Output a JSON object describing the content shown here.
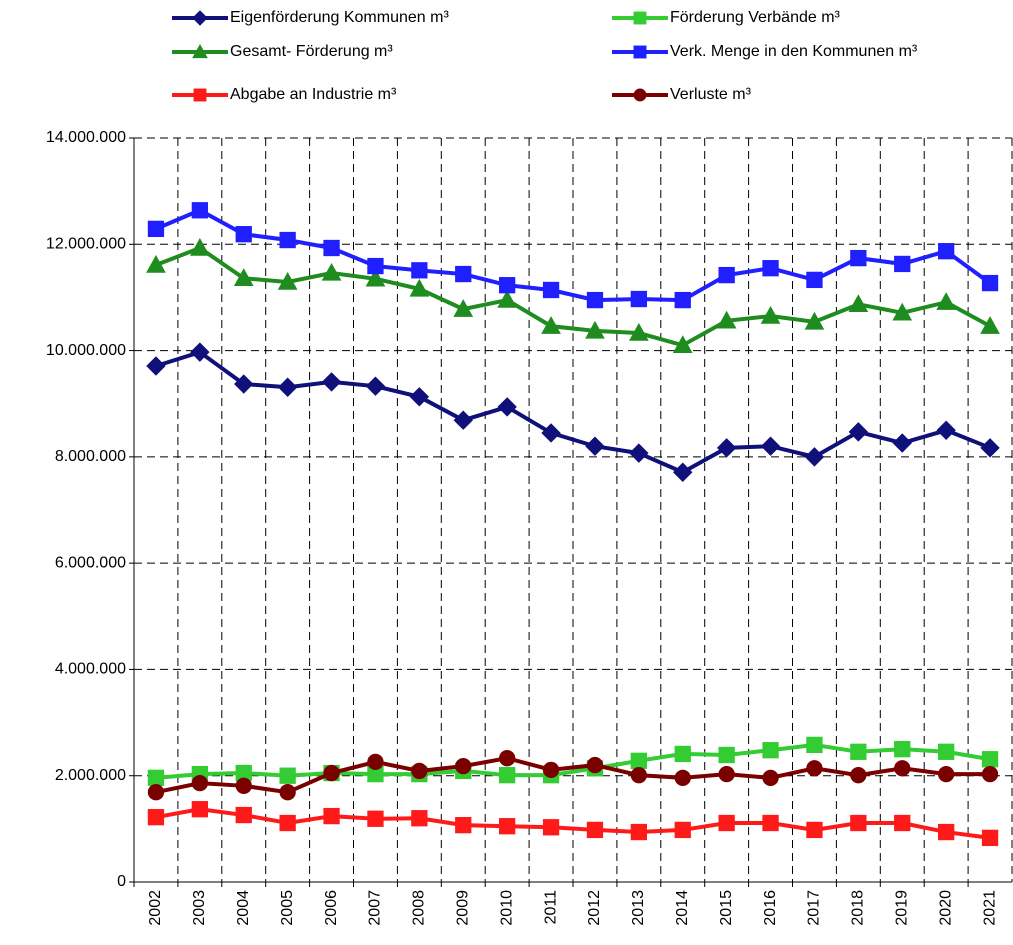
{
  "chart_data": {
    "type": "line",
    "categories": [
      "2002",
      "2003",
      "2004",
      "2005",
      "2006",
      "2007",
      "2008",
      "2009",
      "2010",
      "2011",
      "2012",
      "2013",
      "2014",
      "2015",
      "2016",
      "2017",
      "2018",
      "2019",
      "2020",
      "2021"
    ],
    "series": [
      {
        "name": "Eigenförderung Kommunen m³",
        "color": "#10107a",
        "marker": "diamond",
        "values": [
          9710000,
          9970000,
          9370000,
          9310000,
          9410000,
          9330000,
          9130000,
          8690000,
          8940000,
          8450000,
          8200000,
          8070000,
          7710000,
          8170000,
          8200000,
          8000000,
          8470000,
          8260000,
          8500000,
          8170000
        ]
      },
      {
        "name": "Förderung Verbände m³",
        "color": "#33cc33",
        "marker": "square",
        "values": [
          1960000,
          2030000,
          2050000,
          2000000,
          2050000,
          2030000,
          2030000,
          2090000,
          2010000,
          2010000,
          2140000,
          2280000,
          2410000,
          2390000,
          2480000,
          2580000,
          2450000,
          2500000,
          2450000,
          2310000
        ]
      },
      {
        "name": "Gesamt- Förderung m³",
        "color": "#1e8c1e",
        "marker": "triangle",
        "values": [
          11610000,
          11930000,
          11360000,
          11290000,
          11460000,
          11350000,
          11160000,
          10780000,
          10950000,
          10460000,
          10370000,
          10330000,
          10100000,
          10560000,
          10650000,
          10540000,
          10870000,
          10710000,
          10910000,
          10460000
        ]
      },
      {
        "name": "Verk. Menge in den Kommunen m³",
        "color": "#1f1fff",
        "marker": "square",
        "values": [
          12290000,
          12640000,
          12190000,
          12080000,
          11930000,
          11590000,
          11510000,
          11440000,
          11230000,
          11140000,
          10950000,
          10970000,
          10950000,
          11420000,
          11550000,
          11330000,
          11740000,
          11630000,
          11870000,
          11270000
        ]
      },
      {
        "name": "Abgabe an Industrie m³",
        "color": "#ff1a1a",
        "marker": "square",
        "values": [
          1220000,
          1370000,
          1260000,
          1110000,
          1240000,
          1190000,
          1200000,
          1070000,
          1050000,
          1030000,
          980000,
          940000,
          980000,
          1110000,
          1110000,
          980000,
          1110000,
          1110000,
          940000,
          830000
        ]
      },
      {
        "name": "Verluste m³",
        "color": "#7a0000",
        "marker": "circle",
        "values": [
          1690000,
          1860000,
          1810000,
          1690000,
          2050000,
          2260000,
          2090000,
          2180000,
          2330000,
          2110000,
          2200000,
          2010000,
          1960000,
          2030000,
          1960000,
          2140000,
          2010000,
          2140000,
          2030000,
          2030000
        ]
      }
    ],
    "ylim": [
      0,
      14000000
    ],
    "yticks": [
      0,
      {
        "value": 2000000,
        "label": "2.000.000"
      },
      {
        "value": 4000000,
        "label": "4.000.000"
      },
      {
        "value": 6000000,
        "label": "6.000.000"
      },
      {
        "value": 8000000,
        "label": "8.000.000"
      },
      {
        "value": 10000000,
        "label": "10.000.000"
      },
      {
        "value": 12000000,
        "label": "12.000.000"
      },
      {
        "value": 14000000,
        "label": "14.000.000"
      }
    ],
    "grid": true,
    "legend": "top"
  }
}
